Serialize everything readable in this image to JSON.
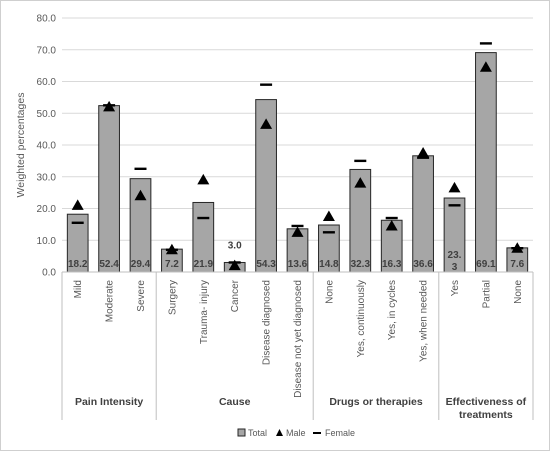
{
  "chart_data": {
    "type": "bar",
    "ylabel": "Weighted percentages",
    "ylim": [
      0,
      80
    ],
    "yticks": [
      "0.0",
      "10.0",
      "20.0",
      "30.0",
      "40.0",
      "50.0",
      "60.0",
      "70.0",
      "80.0"
    ],
    "groups": [
      {
        "name": "Pain Intensity",
        "categories": [
          "Mild",
          "Moderate",
          "Severe"
        ]
      },
      {
        "name": "Cause",
        "categories": [
          "Surgery",
          "Trauma- injury",
          "Cancer",
          "Disease diagnosed",
          "Disease not yet diagnosed"
        ]
      },
      {
        "name": "Drugs or therapies",
        "categories": [
          "None",
          "Yes, continuously",
          "Yes, in cycles",
          "Yes, when needed"
        ]
      },
      {
        "name": "Effectiveness of treatments",
        "categories": [
          "Yes",
          "Partial",
          "None"
        ]
      }
    ],
    "series": [
      {
        "name": "Total",
        "marker": "bar",
        "values": [
          18.2,
          52.4,
          29.4,
          7.2,
          21.9,
          3.0,
          54.3,
          13.6,
          14.8,
          32.3,
          16.3,
          36.6,
          23.3,
          69.1,
          7.6
        ],
        "labels": [
          "18.2",
          "52.4",
          "29.4",
          "7.2",
          "21.9",
          "3.0",
          "54.3",
          "13.6",
          "14.8",
          "32.3",
          "16.3",
          "36.6",
          "23.3",
          "69.1",
          "7.6"
        ]
      },
      {
        "name": "Male",
        "marker": "triangle",
        "values": [
          21,
          52,
          24,
          7,
          29,
          2,
          46.5,
          12.5,
          17.5,
          28,
          14.5,
          37.5,
          26.5,
          64.5,
          7.5
        ]
      },
      {
        "name": "Female",
        "marker": "dash",
        "values": [
          15.5,
          52.5,
          32.5,
          7,
          17,
          3,
          59,
          14.5,
          12.5,
          35,
          17,
          36,
          21,
          72,
          7.5
        ]
      }
    ],
    "legend": {
      "position": "bottom",
      "items": [
        "Total",
        "Male",
        "Female"
      ]
    },
    "colors": {
      "bar_fill": "#a6a6a6",
      "bar_stroke": "#262626",
      "marker": "#000000",
      "grid": "#d9d9d9",
      "text": "#595959",
      "label_text": "#404040"
    },
    "grid": true
  }
}
